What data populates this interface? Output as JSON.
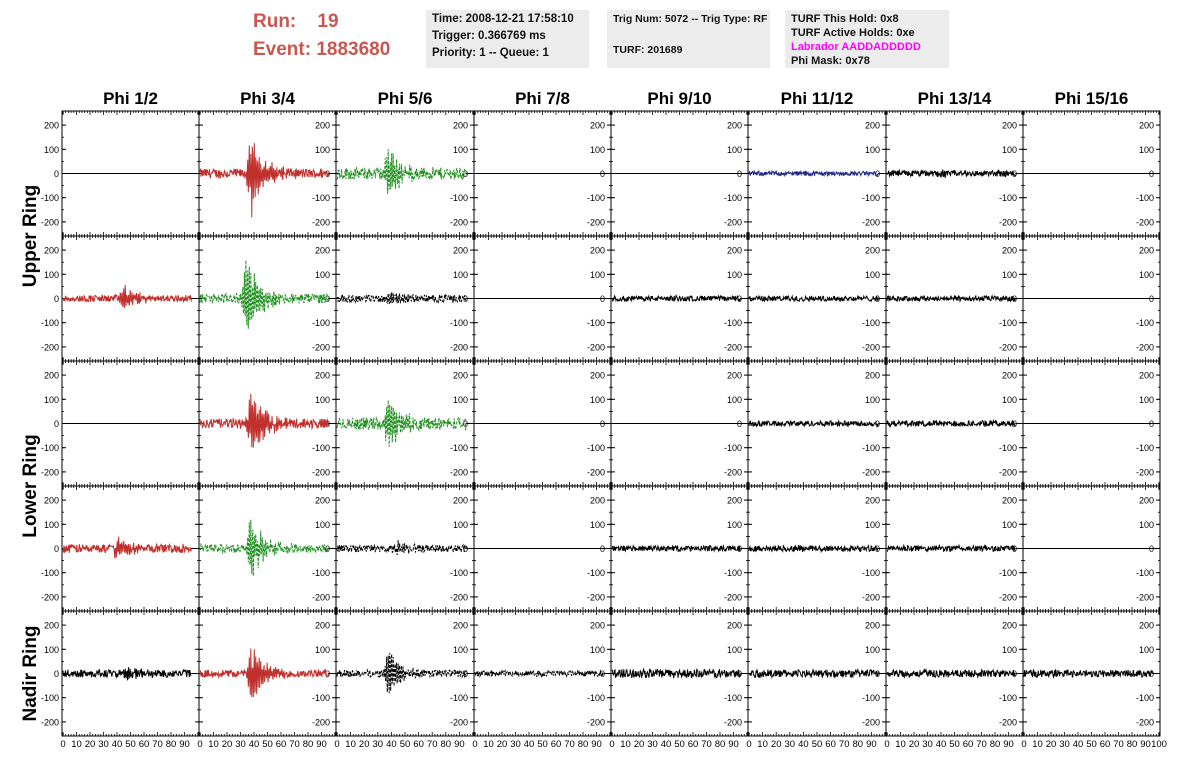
{
  "header": {
    "run_text": "Run:    19",
    "event_text": "Event: 1883680",
    "time": "Time: 2008-12-21 17:58:10",
    "trigger": "Trigger: 0.366769 ms",
    "priority": "Priority: 1 -- Queue: 1",
    "trig_num": "Trig Num: 5072 -- Trig Type: RF",
    "turf": "TURF: 201689",
    "turf_hold": "TURF This Hold: 0x8",
    "turf_active": "TURF Active Holds: 0xe",
    "labrador": "Labrador AADDADDDDD",
    "phi_mask": "Phi Mask: 0x78"
  },
  "colors": {
    "run_text": "#c8574f",
    "labrador_text": "#ff00ff",
    "red": "#c0302c",
    "green": "#1f8f1f",
    "blue": "#22288a",
    "black": "#000000"
  },
  "chart_data": {
    "type": "line",
    "columns": [
      "Phi 1/2",
      "Phi 3/4",
      "Phi 5/6",
      "Phi 7/8",
      "Phi 9/10",
      "Phi 11/12",
      "Phi 13/14",
      "Phi 15/16"
    ],
    "row_groups": [
      "Upper Ring",
      "Lower Ring",
      "Nadir Ring"
    ],
    "xlim": [
      0,
      100
    ],
    "ylim": [
      -250,
      250
    ],
    "x_ticks": [
      0,
      10,
      20,
      30,
      40,
      50,
      60,
      70,
      80,
      90,
      100
    ],
    "y_ticks": [
      -200,
      -100,
      0,
      100,
      200
    ],
    "rows": [
      [
        {
          "color": "black",
          "dash": false,
          "amp": 0,
          "burst": 0,
          "center": 40,
          "end": 100
        },
        {
          "color": "red",
          "dash": false,
          "amp": 20,
          "burst": 170,
          "center": 38,
          "end": 95
        },
        {
          "color": "green",
          "dash": true,
          "amp": 25,
          "burst": 120,
          "center": 38,
          "end": 95
        },
        {
          "color": "black",
          "dash": false,
          "amp": 0,
          "burst": 0,
          "center": 40,
          "end": 100
        },
        {
          "color": "black",
          "dash": false,
          "amp": 0,
          "burst": 0,
          "center": 40,
          "end": 100
        },
        {
          "color": "blue",
          "dash": false,
          "amp": 9,
          "burst": 5,
          "center": 40,
          "end": 95
        },
        {
          "color": "black",
          "dash": false,
          "amp": 13,
          "burst": 10,
          "center": 40,
          "end": 95
        },
        {
          "color": "black",
          "dash": false,
          "amp": 0,
          "burst": 0,
          "center": 40,
          "end": 100
        }
      ],
      [
        {
          "color": "red",
          "dash": false,
          "amp": 14,
          "burst": 60,
          "center": 45,
          "end": 95
        },
        {
          "color": "green",
          "dash": true,
          "amp": 20,
          "burst": 190,
          "center": 35,
          "end": 95
        },
        {
          "color": "black",
          "dash": true,
          "amp": 15,
          "burst": 30,
          "center": 38,
          "end": 95
        },
        {
          "color": "black",
          "dash": false,
          "amp": 0,
          "burst": 0,
          "center": 40,
          "end": 100
        },
        {
          "color": "black",
          "dash": false,
          "amp": 11,
          "burst": 4,
          "center": 40,
          "end": 95
        },
        {
          "color": "black",
          "dash": false,
          "amp": 11,
          "burst": 4,
          "center": 40,
          "end": 95
        },
        {
          "color": "black",
          "dash": false,
          "amp": 11,
          "burst": 4,
          "center": 40,
          "end": 95
        },
        {
          "color": "black",
          "dash": false,
          "amp": 0,
          "burst": 0,
          "center": 40,
          "end": 100
        }
      ],
      [
        {
          "color": "black",
          "dash": false,
          "amp": 0,
          "burst": 0,
          "center": 40,
          "end": 100
        },
        {
          "color": "red",
          "dash": false,
          "amp": 20,
          "burst": 150,
          "center": 38,
          "end": 95
        },
        {
          "color": "green",
          "dash": true,
          "amp": 25,
          "burst": 110,
          "center": 38,
          "end": 95
        },
        {
          "color": "black",
          "dash": false,
          "amp": 0,
          "burst": 0,
          "center": 40,
          "end": 100
        },
        {
          "color": "black",
          "dash": false,
          "amp": 0,
          "burst": 0,
          "center": 40,
          "end": 100
        },
        {
          "color": "black",
          "dash": false,
          "amp": 11,
          "burst": 4,
          "center": 40,
          "end": 95
        },
        {
          "color": "black",
          "dash": false,
          "amp": 12,
          "burst": 10,
          "center": 40,
          "end": 95
        },
        {
          "color": "black",
          "dash": false,
          "amp": 0,
          "burst": 0,
          "center": 40,
          "end": 100
        }
      ],
      [
        {
          "color": "red",
          "dash": false,
          "amp": 18,
          "burst": 50,
          "center": 40,
          "end": 95
        },
        {
          "color": "green",
          "dash": true,
          "amp": 18,
          "burst": 140,
          "center": 38,
          "end": 95
        },
        {
          "color": "black",
          "dash": true,
          "amp": 15,
          "burst": 25,
          "center": 45,
          "end": 95
        },
        {
          "color": "black",
          "dash": false,
          "amp": 0,
          "burst": 0,
          "center": 40,
          "end": 100
        },
        {
          "color": "black",
          "dash": false,
          "amp": 11,
          "burst": 4,
          "center": 40,
          "end": 95
        },
        {
          "color": "black",
          "dash": false,
          "amp": 12,
          "burst": 10,
          "center": 40,
          "end": 95
        },
        {
          "color": "black",
          "dash": false,
          "amp": 12,
          "burst": 6,
          "center": 40,
          "end": 95
        },
        {
          "color": "black",
          "dash": false,
          "amp": 0,
          "burst": 0,
          "center": 40,
          "end": 100
        }
      ],
      [
        {
          "color": "black",
          "dash": false,
          "amp": 16,
          "burst": 30,
          "center": 45,
          "end": 95
        },
        {
          "color": "red",
          "dash": false,
          "amp": 15,
          "burst": 140,
          "center": 38,
          "end": 95
        },
        {
          "color": "black",
          "dash": true,
          "amp": 15,
          "burst": 110,
          "center": 38,
          "end": 95
        },
        {
          "color": "black",
          "dash": true,
          "amp": 12,
          "burst": 5,
          "center": 40,
          "end": 95
        },
        {
          "color": "black",
          "dash": false,
          "amp": 18,
          "burst": 8,
          "center": 40,
          "end": 95
        },
        {
          "color": "black",
          "dash": false,
          "amp": 16,
          "burst": 8,
          "center": 40,
          "end": 95
        },
        {
          "color": "black",
          "dash": false,
          "amp": 15,
          "burst": 8,
          "center": 40,
          "end": 95
        },
        {
          "color": "black",
          "dash": false,
          "amp": 15,
          "burst": 8,
          "center": 40,
          "end": 95
        }
      ]
    ]
  }
}
